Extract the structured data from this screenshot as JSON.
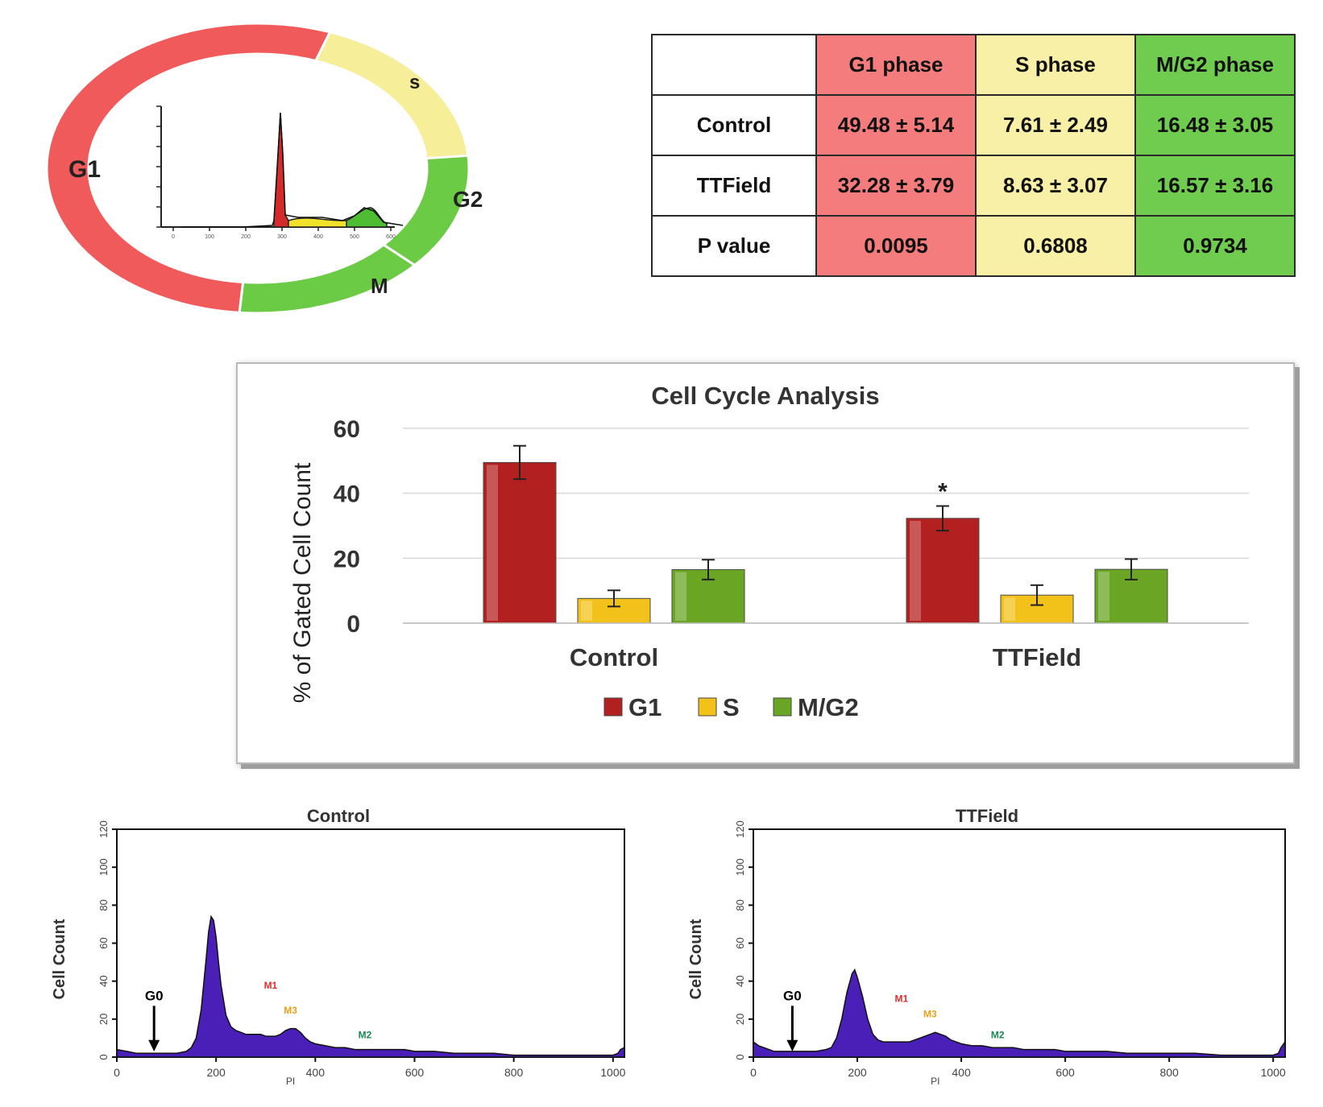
{
  "ring": {
    "labels": {
      "g1": "G1",
      "s": "s",
      "g2": "G2",
      "m": "M"
    },
    "colors": {
      "g1": "#f15a5a",
      "s": "#f6ee98",
      "g2": "#6ccb45",
      "m": "#6ccb45"
    },
    "inset_x_ticks": [
      "0",
      "100",
      "200",
      "300",
      "400",
      "500",
      "600"
    ]
  },
  "table": {
    "headers": [
      "",
      "G1 phase",
      "S phase",
      "M/G2 phase"
    ],
    "rows": [
      {
        "label": "Control",
        "g1": "49.48 ± 5.14",
        "s": "7.61 ± 2.49",
        "g2": "16.48 ± 3.05"
      },
      {
        "label": "TTField",
        "g1": "32.28 ± 3.79",
        "s": "8.63 ± 3.07",
        "g2": "16.57 ± 3.16"
      },
      {
        "label": "P value",
        "g1": "0.0095",
        "s": "0.6808",
        "g2": "0.9734"
      }
    ]
  },
  "chart_data": [
    {
      "type": "bar",
      "title": "Cell Cycle Analysis",
      "xlabel": "",
      "ylabel": "% of Gated Cell Count",
      "categories": [
        "Control",
        "TTField"
      ],
      "series": [
        {
          "name": "G1",
          "values": [
            49.48,
            32.28
          ],
          "errors": [
            5.14,
            3.79
          ],
          "color": "#b32020"
        },
        {
          "name": "S",
          "values": [
            7.61,
            8.63
          ],
          "errors": [
            2.49,
            3.07
          ],
          "color": "#f2c21b"
        },
        {
          "name": "M/G2",
          "values": [
            16.48,
            16.57
          ],
          "errors": [
            3.05,
            3.16
          ],
          "color": "#6aa624"
        }
      ],
      "ylim": [
        0,
        60
      ],
      "yticks": [
        "0",
        "20",
        "40",
        "60"
      ],
      "significance": {
        "category": "TTField",
        "series": "G1",
        "mark": "*"
      },
      "legend": "bottom",
      "grid": true
    },
    {
      "type": "area",
      "title": "Control",
      "xlabel": "PI",
      "ylabel": "Cell Count",
      "xlim": [
        0,
        1023
      ],
      "ylim": [
        0,
        120
      ],
      "xticks": [
        "0",
        "200",
        "400",
        "600",
        "800",
        "1000"
      ],
      "yticks": [
        "0",
        "20",
        "40",
        "60",
        "80",
        "100",
        "120"
      ],
      "fill": "#4a1fb8",
      "annotations": [
        {
          "text": "G0",
          "x": 75,
          "y": 30,
          "color": "#000000"
        },
        {
          "text": "M1",
          "x": 310,
          "y": 36,
          "color": "#e0302a"
        },
        {
          "text": "M3",
          "x": 350,
          "y": 23,
          "color": "#e8a21a"
        },
        {
          "text": "M2",
          "x": 500,
          "y": 10,
          "color": "#1a8a55"
        }
      ],
      "curve": [
        [
          0,
          4
        ],
        [
          20,
          3
        ],
        [
          40,
          2
        ],
        [
          60,
          2
        ],
        [
          80,
          2
        ],
        [
          100,
          2
        ],
        [
          120,
          2
        ],
        [
          140,
          3
        ],
        [
          150,
          5
        ],
        [
          160,
          10
        ],
        [
          170,
          25
        ],
        [
          180,
          52
        ],
        [
          185,
          66
        ],
        [
          190,
          74
        ],
        [
          195,
          72
        ],
        [
          200,
          63
        ],
        [
          205,
          50
        ],
        [
          210,
          38
        ],
        [
          220,
          22
        ],
        [
          230,
          16
        ],
        [
          240,
          14
        ],
        [
          250,
          13
        ],
        [
          260,
          12
        ],
        [
          270,
          12
        ],
        [
          280,
          12
        ],
        [
          290,
          12
        ],
        [
          300,
          11
        ],
        [
          310,
          11
        ],
        [
          320,
          11
        ],
        [
          330,
          12
        ],
        [
          340,
          14
        ],
        [
          350,
          15
        ],
        [
          360,
          15
        ],
        [
          370,
          13
        ],
        [
          380,
          10
        ],
        [
          390,
          8
        ],
        [
          400,
          7
        ],
        [
          420,
          6
        ],
        [
          440,
          5
        ],
        [
          460,
          5
        ],
        [
          480,
          4
        ],
        [
          500,
          4
        ],
        [
          520,
          4
        ],
        [
          540,
          4
        ],
        [
          560,
          4
        ],
        [
          580,
          4
        ],
        [
          600,
          3
        ],
        [
          640,
          3
        ],
        [
          680,
          2
        ],
        [
          720,
          2
        ],
        [
          760,
          2
        ],
        [
          800,
          1
        ],
        [
          850,
          1
        ],
        [
          900,
          1
        ],
        [
          950,
          1
        ],
        [
          1000,
          1
        ],
        [
          1010,
          2
        ],
        [
          1015,
          4
        ],
        [
          1023,
          5
        ]
      ]
    },
    {
      "type": "area",
      "title": "TTField",
      "xlabel": "PI",
      "ylabel": "Cell Count",
      "xlim": [
        0,
        1023
      ],
      "ylim": [
        0,
        120
      ],
      "xticks": [
        "0",
        "200",
        "400",
        "600",
        "800",
        "1000"
      ],
      "yticks": [
        "0",
        "20",
        "40",
        "60",
        "80",
        "100",
        "120"
      ],
      "fill": "#4a1fb8",
      "annotations": [
        {
          "text": "G0",
          "x": 75,
          "y": 30,
          "color": "#000000"
        },
        {
          "text": "M1",
          "x": 285,
          "y": 29,
          "color": "#e0302a"
        },
        {
          "text": "M3",
          "x": 340,
          "y": 21,
          "color": "#e8a21a"
        },
        {
          "text": "M2",
          "x": 470,
          "y": 10,
          "color": "#1a8a55"
        }
      ],
      "curve": [
        [
          0,
          8
        ],
        [
          10,
          6
        ],
        [
          20,
          5
        ],
        [
          40,
          3
        ],
        [
          60,
          3
        ],
        [
          80,
          3
        ],
        [
          100,
          3
        ],
        [
          120,
          3
        ],
        [
          140,
          4
        ],
        [
          150,
          5
        ],
        [
          160,
          10
        ],
        [
          170,
          20
        ],
        [
          180,
          34
        ],
        [
          190,
          44
        ],
        [
          195,
          46
        ],
        [
          200,
          42
        ],
        [
          210,
          32
        ],
        [
          220,
          20
        ],
        [
          230,
          12
        ],
        [
          240,
          9
        ],
        [
          250,
          8
        ],
        [
          260,
          8
        ],
        [
          270,
          8
        ],
        [
          280,
          8
        ],
        [
          290,
          8
        ],
        [
          300,
          8
        ],
        [
          310,
          9
        ],
        [
          320,
          10
        ],
        [
          330,
          11
        ],
        [
          340,
          12
        ],
        [
          350,
          13
        ],
        [
          360,
          12
        ],
        [
          370,
          11
        ],
        [
          380,
          9
        ],
        [
          390,
          8
        ],
        [
          400,
          7
        ],
        [
          420,
          6
        ],
        [
          440,
          6
        ],
        [
          460,
          5
        ],
        [
          480,
          5
        ],
        [
          500,
          5
        ],
        [
          520,
          4
        ],
        [
          540,
          4
        ],
        [
          560,
          4
        ],
        [
          580,
          4
        ],
        [
          600,
          3
        ],
        [
          640,
          3
        ],
        [
          680,
          3
        ],
        [
          720,
          2
        ],
        [
          760,
          2
        ],
        [
          800,
          2
        ],
        [
          850,
          2
        ],
        [
          900,
          1
        ],
        [
          950,
          1
        ],
        [
          1000,
          1
        ],
        [
          1010,
          2
        ],
        [
          1015,
          5
        ],
        [
          1023,
          8
        ]
      ]
    }
  ]
}
